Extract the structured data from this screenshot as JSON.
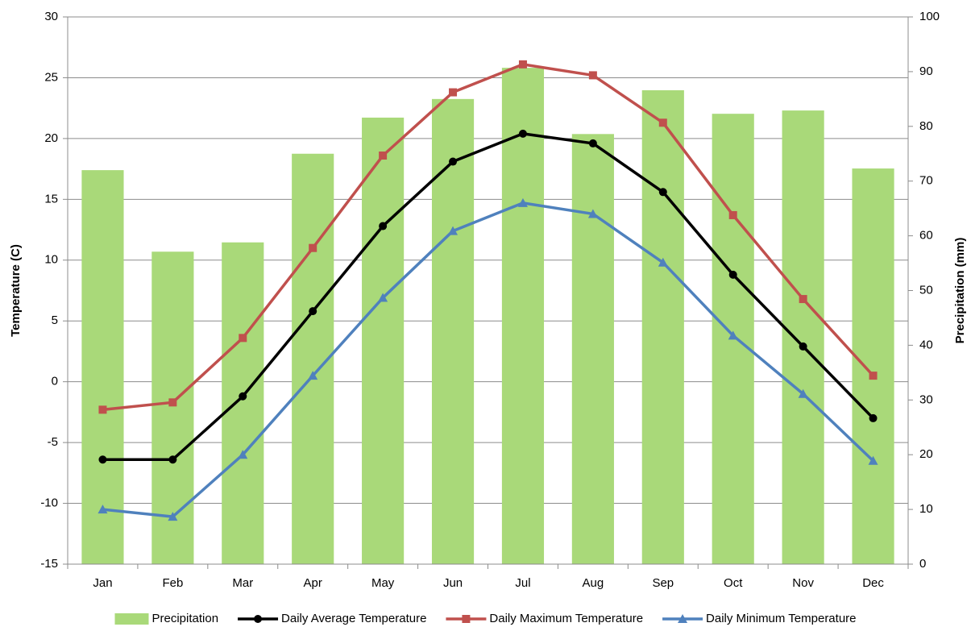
{
  "chart_data": {
    "type": "combo",
    "categories": [
      "Jan",
      "Feb",
      "Mar",
      "Apr",
      "May",
      "Jun",
      "Jul",
      "Aug",
      "Sep",
      "Oct",
      "Nov",
      "Dec"
    ],
    "ylabel": "Temperature (C)",
    "y2label": "Precipitation (mm)",
    "ylim": [
      -15,
      30
    ],
    "yticks": [
      -15,
      -10,
      -5,
      0,
      5,
      10,
      15,
      20,
      25,
      30
    ],
    "y2lim": [
      0,
      100
    ],
    "y2ticks": [
      0,
      10,
      20,
      30,
      40,
      50,
      60,
      70,
      80,
      90,
      100
    ],
    "grid": true,
    "legend": "bottom",
    "series": [
      {
        "name": "Precipitation",
        "type": "bar",
        "axis": "y2",
        "color": "#a9d979",
        "values": [
          72.0,
          57.1,
          58.8,
          75.0,
          81.6,
          85.0,
          90.7,
          78.6,
          86.6,
          82.3,
          82.9,
          72.3
        ]
      },
      {
        "name": "Daily Average Temperature",
        "type": "line",
        "marker": "circle",
        "color": "#000000",
        "values": [
          -6.4,
          -6.4,
          -1.2,
          5.8,
          12.8,
          18.1,
          20.4,
          19.6,
          15.6,
          8.8,
          2.9,
          -3.0
        ]
      },
      {
        "name": "Daily Maximum Temperature",
        "type": "line",
        "marker": "square",
        "color": "#c0504d",
        "values": [
          -2.3,
          -1.7,
          3.6,
          11.0,
          18.6,
          23.8,
          26.1,
          25.2,
          21.3,
          13.7,
          6.8,
          0.5
        ]
      },
      {
        "name": "Daily Minimum Temperature",
        "type": "line",
        "marker": "triangle",
        "color": "#4f81bd",
        "values": [
          -10.5,
          -11.1,
          -6.0,
          0.5,
          6.9,
          12.4,
          14.7,
          13.8,
          9.8,
          3.8,
          -1.0,
          -6.5
        ]
      }
    ]
  }
}
